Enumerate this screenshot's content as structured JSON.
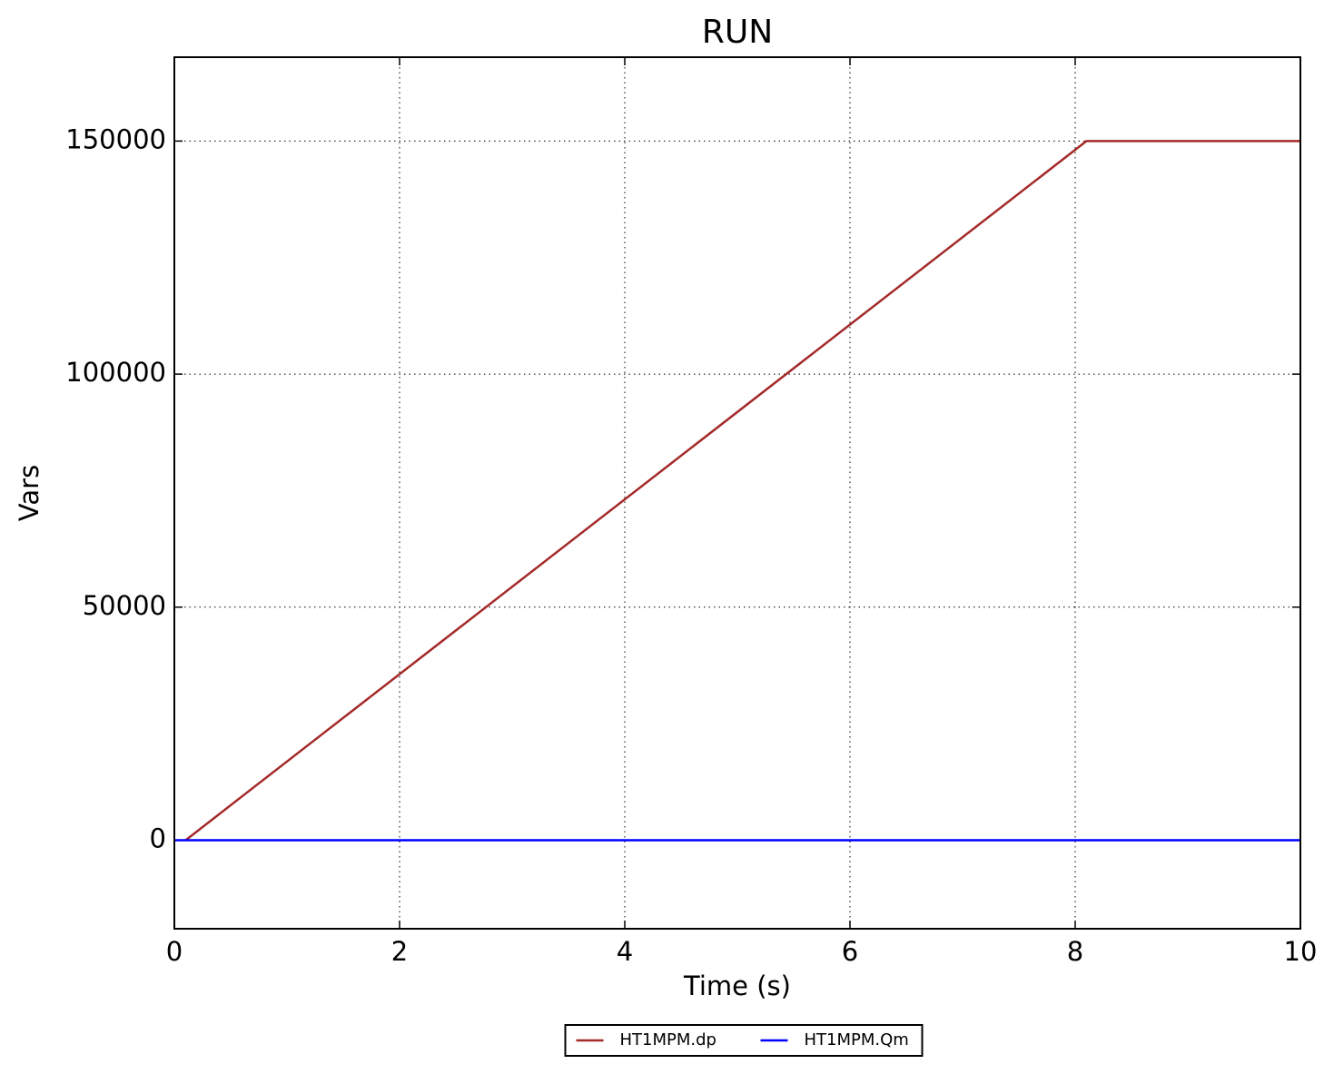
{
  "chart_data": {
    "type": "line",
    "title": "RUN",
    "x_label": "Time (s)",
    "y_label": "Vars",
    "xlim": [
      0,
      10
    ],
    "xticks": [
      0,
      2,
      4,
      6,
      8,
      10
    ],
    "ylim": [
      -19000,
      168000
    ],
    "yticks": [
      0,
      50000,
      100000,
      150000
    ],
    "grid": true,
    "legend_position": "bottom",
    "series": [
      {
        "name": "HT1MPM.dp",
        "color": "#a52a2a",
        "x": [
          0.1,
          8.1,
          10
        ],
        "values": [
          0,
          150000,
          150000
        ]
      },
      {
        "name": "HT1MPM.Qm",
        "color": "#0000ff",
        "x": [
          0,
          10
        ],
        "values": [
          0,
          0
        ]
      }
    ]
  }
}
